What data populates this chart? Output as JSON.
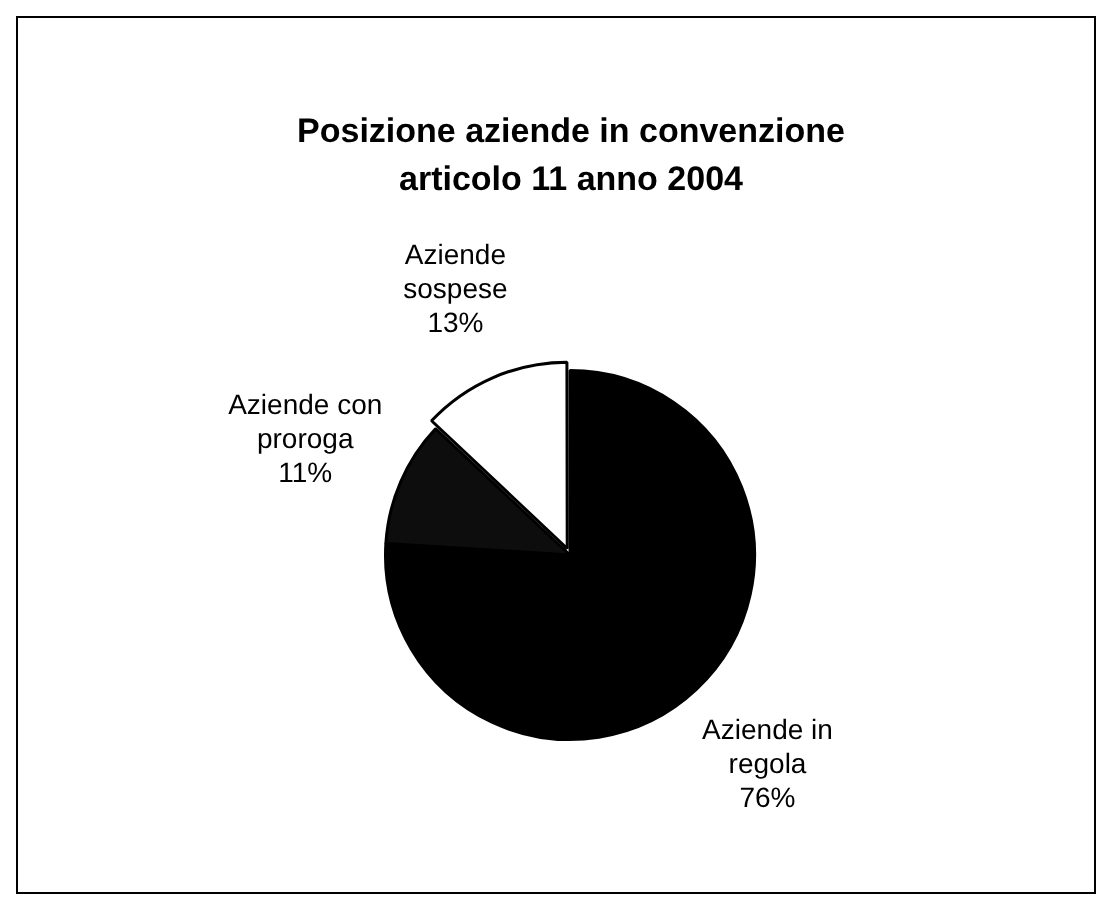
{
  "chart_data": {
    "type": "pie",
    "title": "Posizione aziende in convenzione articolo 11 anno 2004",
    "categories": [
      "Aziende in regola",
      "Aziende con proroga",
      "Aziende sospese"
    ],
    "values": [
      76,
      11,
      13
    ],
    "colors": [
      "#000000",
      "#0d0d0d",
      "#ffffff"
    ],
    "value_labels": [
      "76%",
      "11%",
      "13%"
    ],
    "legend": false
  }
}
